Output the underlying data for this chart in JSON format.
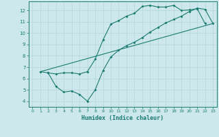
{
  "xlabel": "Humidex (Indice chaleur)",
  "bg_color": "#cce8ed",
  "line_color": "#1a7a6e",
  "grid_color": "#b8d8de",
  "xlim": [
    -0.5,
    23.5
  ],
  "ylim": [
    3.5,
    12.8
  ],
  "xticks": [
    0,
    1,
    2,
    3,
    4,
    5,
    6,
    7,
    8,
    9,
    10,
    11,
    12,
    13,
    14,
    15,
    16,
    17,
    18,
    19,
    20,
    21,
    22,
    23
  ],
  "yticks": [
    4,
    5,
    6,
    7,
    8,
    9,
    10,
    11,
    12
  ],
  "line1_x": [
    1,
    2,
    3,
    4,
    5,
    6,
    7,
    8,
    9,
    10,
    11,
    12,
    13,
    14,
    15,
    16,
    17,
    18,
    19,
    20,
    21,
    22
  ],
  "line1_y": [
    6.6,
    6.5,
    6.4,
    6.5,
    6.5,
    6.4,
    6.6,
    7.7,
    9.4,
    10.8,
    11.1,
    11.5,
    11.75,
    12.35,
    12.45,
    12.3,
    12.3,
    12.45,
    12.0,
    12.05,
    12.15,
    10.85
  ],
  "line2_x": [
    1,
    23
  ],
  "line2_y": [
    6.6,
    10.85
  ],
  "line3_x": [
    2,
    3,
    4,
    5,
    6,
    7,
    8,
    9,
    10,
    11,
    12,
    13,
    14,
    15,
    16,
    17,
    18,
    19,
    20,
    21,
    22,
    23
  ],
  "line3_y": [
    6.5,
    5.3,
    4.8,
    4.9,
    4.6,
    4.0,
    5.0,
    6.7,
    7.9,
    8.5,
    8.9,
    9.2,
    9.6,
    10.1,
    10.5,
    10.9,
    11.2,
    11.5,
    11.9,
    12.2,
    12.1,
    10.85
  ]
}
